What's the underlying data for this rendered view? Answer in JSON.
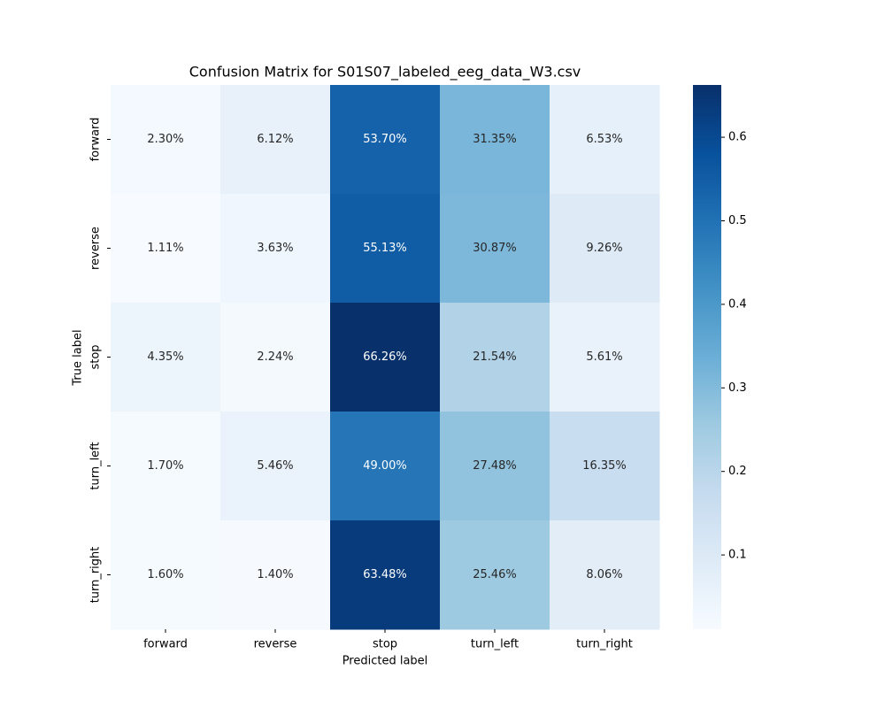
{
  "chart_data": {
    "type": "heatmap",
    "title": "Confusion Matrix for S01S07_labeled_eeg_data_W3.csv",
    "x_label": "Predicted label",
    "y_label": "True label",
    "x_categories": [
      "forward",
      "reverse",
      "stop",
      "turn_left",
      "turn_right"
    ],
    "y_categories": [
      "forward",
      "reverse",
      "stop",
      "turn_left",
      "turn_right"
    ],
    "values": [
      [
        0.023,
        0.0612,
        0.537,
        0.3135,
        0.0653
      ],
      [
        0.0111,
        0.0363,
        0.5513,
        0.3087,
        0.0926
      ],
      [
        0.0435,
        0.0224,
        0.6626,
        0.2154,
        0.0561
      ],
      [
        0.017,
        0.0546,
        0.49,
        0.2748,
        0.1635
      ],
      [
        0.016,
        0.014,
        0.6348,
        0.2546,
        0.0806
      ]
    ],
    "value_labels": [
      [
        "2.30%",
        "6.12%",
        "53.70%",
        "31.35%",
        "6.53%"
      ],
      [
        "1.11%",
        "3.63%",
        "55.13%",
        "30.87%",
        "9.26%"
      ],
      [
        "4.35%",
        "2.24%",
        "66.26%",
        "21.54%",
        "5.61%"
      ],
      [
        "1.70%",
        "5.46%",
        "49.00%",
        "27.48%",
        "16.35%"
      ],
      [
        "1.60%",
        "1.40%",
        "63.48%",
        "25.46%",
        "8.06%"
      ]
    ],
    "colormap": "Blues",
    "clim": [
      0.0111,
      0.6626
    ],
    "cticks": [
      0.1,
      0.2,
      0.3,
      0.4,
      0.5,
      0.6
    ]
  }
}
